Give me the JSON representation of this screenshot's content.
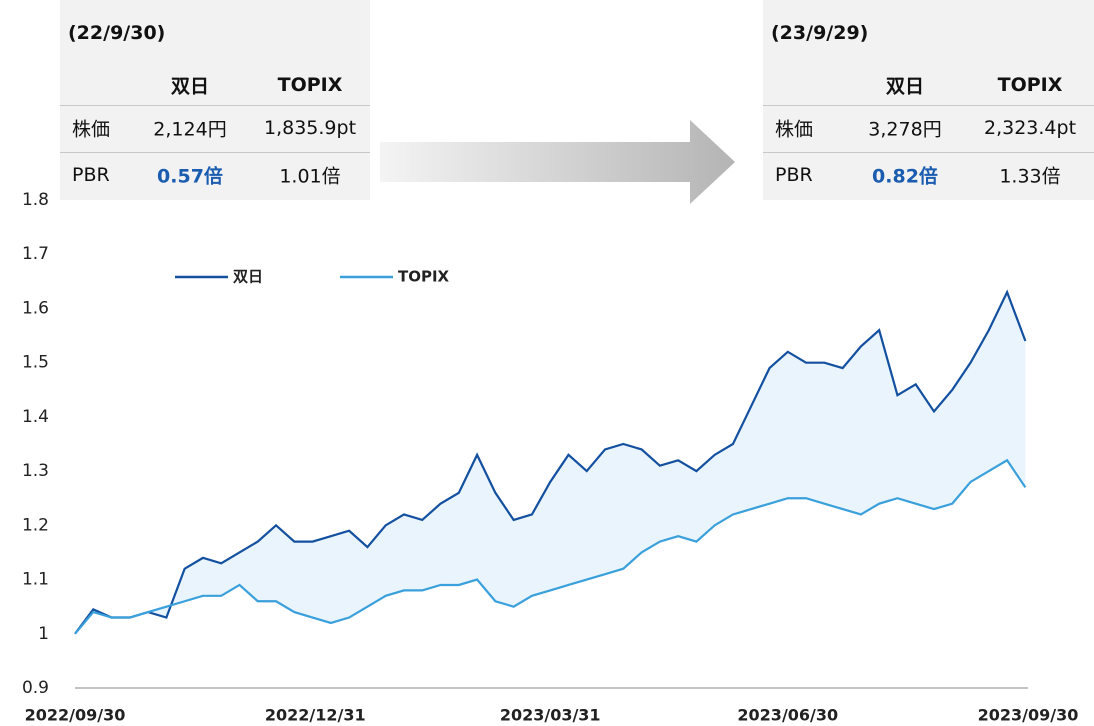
{
  "chart_data": {
    "type": "line",
    "x": [
      "2022/09/30",
      "2022/10/07",
      "2022/10/14",
      "2022/10/21",
      "2022/10/28",
      "2022/11/04",
      "2022/11/11",
      "2022/11/18",
      "2022/11/25",
      "2022/12/02",
      "2022/12/09",
      "2022/12/16",
      "2022/12/23",
      "2022/12/30",
      "2023/01/06",
      "2023/01/13",
      "2023/01/20",
      "2023/01/27",
      "2023/02/03",
      "2023/02/10",
      "2023/02/17",
      "2023/02/24",
      "2023/03/03",
      "2023/03/10",
      "2023/03/17",
      "2023/03/24",
      "2023/03/31",
      "2023/04/07",
      "2023/04/14",
      "2023/04/21",
      "2023/04/28",
      "2023/05/05",
      "2023/05/12",
      "2023/05/19",
      "2023/05/26",
      "2023/06/02",
      "2023/06/09",
      "2023/06/16",
      "2023/06/23",
      "2023/06/30",
      "2023/07/07",
      "2023/07/14",
      "2023/07/21",
      "2023/07/28",
      "2023/08/04",
      "2023/08/11",
      "2023/08/18",
      "2023/08/25",
      "2023/09/01",
      "2023/09/08",
      "2023/09/15",
      "2023/09/22",
      "2023/09/29"
    ],
    "series": [
      {
        "name": "双日",
        "color": "#1450a0",
        "values": [
          1.0,
          1.045,
          1.03,
          1.03,
          1.04,
          1.03,
          1.12,
          1.14,
          1.13,
          1.15,
          1.17,
          1.2,
          1.17,
          1.17,
          1.18,
          1.19,
          1.16,
          1.2,
          1.22,
          1.21,
          1.24,
          1.26,
          1.33,
          1.26,
          1.21,
          1.22,
          1.28,
          1.33,
          1.3,
          1.34,
          1.35,
          1.34,
          1.31,
          1.32,
          1.3,
          1.33,
          1.35,
          1.42,
          1.49,
          1.52,
          1.5,
          1.5,
          1.49,
          1.53,
          1.56,
          1.44,
          1.46,
          1.41,
          1.45,
          1.5,
          1.56,
          1.63,
          1.54
        ]
      },
      {
        "name": "TOPIX",
        "color": "#3aa0dc",
        "values": [
          1.0,
          1.04,
          1.03,
          1.03,
          1.04,
          1.05,
          1.06,
          1.07,
          1.07,
          1.09,
          1.06,
          1.06,
          1.04,
          1.03,
          1.02,
          1.03,
          1.05,
          1.07,
          1.08,
          1.08,
          1.09,
          1.09,
          1.1,
          1.06,
          1.05,
          1.07,
          1.08,
          1.09,
          1.1,
          1.11,
          1.12,
          1.15,
          1.17,
          1.18,
          1.17,
          1.2,
          1.22,
          1.23,
          1.24,
          1.25,
          1.25,
          1.24,
          1.23,
          1.22,
          1.24,
          1.25,
          1.24,
          1.23,
          1.24,
          1.28,
          1.3,
          1.32,
          1.27
        ]
      }
    ],
    "fill_between": "#eaf4fd",
    "xlim": [
      "2022/09/30",
      "2023/09/30"
    ],
    "xticks": [
      "2022/09/30",
      "2022/12/31",
      "2023/03/31",
      "2023/06/30",
      "2023/09/30"
    ],
    "ylim": [
      0.9,
      1.8
    ],
    "yticks": [
      0.9,
      1,
      1.1,
      1.2,
      1.3,
      1.4,
      1.5,
      1.6,
      1.7,
      1.8
    ],
    "grid": false
  },
  "tables": [
    {
      "date": "(22/9/30)",
      "header": [
        "双日",
        "TOPIX"
      ],
      "rows": [
        [
          "株価",
          "2,124円",
          "1,835.9pt"
        ],
        [
          "PBR",
          "0.57倍",
          "1.01倍"
        ]
      ]
    },
    {
      "date": "(23/9/29)",
      "header": [
        "双日",
        "TOPIX"
      ],
      "rows": [
        [
          "株価",
          "3,278円",
          "2,323.4pt"
        ],
        [
          "PBR",
          "0.82倍",
          "1.33倍"
        ]
      ]
    }
  ]
}
